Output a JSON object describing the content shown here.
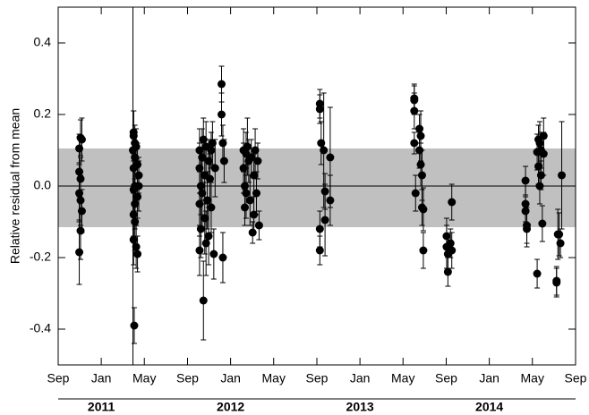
{
  "chart_data": {
    "type": "scatter",
    "y_label": "Relative residual from mean",
    "xlim": [
      2010.667,
      2014.667
    ],
    "ylim": [
      -0.5,
      0.5
    ],
    "xticks": [
      {
        "value": 2010.667,
        "label": "Sep"
      },
      {
        "value": 2011,
        "label": "Jan"
      },
      {
        "value": 2011.333,
        "label": "May"
      },
      {
        "value": 2011.667,
        "label": "Sep"
      },
      {
        "value": 2012,
        "label": "Jan"
      },
      {
        "value": 2012.333,
        "label": "May"
      },
      {
        "value": 2012.667,
        "label": "Sep"
      },
      {
        "value": 2013,
        "label": "Jan"
      },
      {
        "value": 2013.333,
        "label": "May"
      },
      {
        "value": 2013.667,
        "label": "Sep"
      },
      {
        "value": 2014,
        "label": "Jan"
      },
      {
        "value": 2014.333,
        "label": "May"
      },
      {
        "value": 2014.667,
        "label": "Sep"
      }
    ],
    "year_ticks": [
      2011,
      2012,
      2013,
      2014
    ],
    "yticks": [
      -0.4,
      -0.2,
      {
        "value": 0,
        "label": "0.0"
      },
      0.2,
      0.4
    ],
    "band": [
      -0.115,
      0.105
    ],
    "band_color": "#c0c0c0",
    "reference_line": 0,
    "color": "#000000",
    "x": [
      2010.83,
      2010.84,
      2010.85,
      2010.83,
      2010.84,
      2010.83,
      2010.84,
      2010.85,
      2010.84,
      2010.83,
      2011.245,
      2011.25,
      2011.25,
      2011.26,
      2011.26,
      2011.25,
      2011.26,
      2011.25,
      2011.26,
      2011.25,
      2011.26,
      2011.25,
      2011.255,
      2011.27,
      2011.28,
      2011.29,
      2011.28,
      2011.29,
      2011.27,
      2011.28,
      2011.76,
      2011.76,
      2011.77,
      2011.76,
      2011.77,
      2011.76,
      2011.78,
      2011.78,
      2011.79,
      2011.79,
      2011.8,
      2011.8,
      2011.81,
      2011.81,
      2011.82,
      2011.83,
      2011.83,
      2011.84,
      2011.85,
      2011.85,
      2011.86,
      2011.87,
      2011.88,
      2011.93,
      2011.93,
      2011.94,
      2011.94,
      2011.95,
      2012.1,
      2012.1,
      2012.11,
      2012.11,
      2012.12,
      2012.12,
      2012.13,
      2012.14,
      2012.15,
      2012.16,
      2012.17,
      2012.18,
      2012.18,
      2012.19,
      2012.2,
      2012.21,
      2012.22,
      2012.69,
      2012.69,
      2012.7,
      2012.69,
      2012.69,
      2012.72,
      2012.73,
      2012.73,
      2012.77,
      2012.77,
      2013.42,
      2013.42,
      2013.42,
      2013.42,
      2013.43,
      2013.46,
      2013.46,
      2013.47,
      2013.47,
      2013.48,
      2013.48,
      2013.49,
      2013.49,
      2013.67,
      2013.67,
      2013.68,
      2013.68,
      2013.7,
      2013.71,
      2013.71,
      2014.28,
      2014.28,
      2014.28,
      2014.29,
      2014.29,
      2014.37,
      2014.37,
      2014.38,
      2014.38,
      2014.39,
      2014.39,
      2014.4,
      2014.4,
      2014.41,
      2014.42,
      2014.42,
      2014.52,
      2014.52,
      2014.53,
      2014.54,
      2014.55,
      2014.56
    ],
    "values": [
      0.105,
      0.135,
      0.13,
      0.04,
      0.02,
      -0.02,
      -0.04,
      -0.07,
      -0.125,
      -0.185,
      0.1,
      0.15,
      0.14,
      0.12,
      0.08,
      0.05,
      0.0,
      -0.01,
      -0.05,
      -0.08,
      -0.1,
      -0.15,
      -0.39,
      0.11,
      0.06,
      0.03,
      -0.03,
      0.0,
      -0.17,
      -0.19,
      0.1,
      0.05,
      0.0,
      -0.05,
      -0.12,
      -0.18,
      0.08,
      -0.02,
      -0.32,
      0.13,
      0.03,
      -0.09,
      -0.16,
      0.11,
      -0.04,
      0.07,
      -0.14,
      0.02,
      0.1,
      -0.06,
      0.12,
      -0.19,
      0.05,
      0.285,
      0.2,
      0.12,
      -0.2,
      0.07,
      0.1,
      0.05,
      0.0,
      -0.06,
      0.09,
      -0.02,
      0.11,
      0.07,
      -0.04,
      0.08,
      -0.13,
      0.03,
      -0.08,
      0.1,
      -0.02,
      0.07,
      -0.11,
      0.23,
      0.215,
      0.12,
      -0.12,
      -0.18,
      0.1,
      -0.015,
      -0.095,
      0.08,
      -0.04,
      0.245,
      0.24,
      0.21,
      0.12,
      -0.02,
      0.16,
      0.1,
      0.06,
      0.14,
      -0.06,
      0.03,
      -0.18,
      -0.065,
      -0.14,
      -0.17,
      -0.24,
      -0.19,
      -0.16,
      -0.18,
      -0.045,
      0.015,
      -0.05,
      -0.07,
      -0.11,
      -0.12,
      0.095,
      -0.245,
      0.13,
      0.055,
      0.12,
      0.0,
      0.1,
      0.03,
      -0.105,
      0.14,
      0.09,
      -0.265,
      -0.27,
      -0.135,
      -0.135,
      -0.16,
      0.03
    ],
    "errors": [
      0.04,
      0.05,
      0.06,
      0.07,
      0.06,
      0.08,
      0.07,
      0.06,
      0.08,
      0.09,
      0.6,
      0.06,
      0.07,
      0.05,
      0.06,
      0.07,
      0.08,
      0.06,
      0.07,
      0.06,
      0.08,
      0.07,
      0.05,
      0.05,
      0.06,
      0.05,
      0.06,
      0.07,
      0.06,
      0.05,
      0.06,
      0.07,
      0.08,
      0.09,
      0.08,
      0.07,
      0.08,
      0.1,
      0.11,
      0.06,
      0.08,
      0.1,
      0.09,
      0.07,
      0.08,
      0.06,
      0.08,
      0.07,
      0.05,
      0.07,
      0.06,
      0.07,
      0.08,
      0.05,
      0.06,
      0.05,
      0.07,
      0.06,
      0.06,
      0.07,
      0.06,
      0.05,
      0.06,
      0.07,
      0.08,
      0.06,
      0.07,
      0.05,
      0.03,
      0.06,
      0.05,
      0.06,
      0.06,
      0.05,
      0.04,
      0.04,
      0.04,
      0.06,
      0.05,
      0.04,
      0.16,
      0.05,
      0.1,
      0.14,
      0.07,
      0.04,
      0.04,
      0.05,
      0.03,
      0.05,
      0.04,
      0.05,
      0.06,
      0.07,
      0.05,
      0.07,
      0.05,
      0.06,
      0.05,
      0.06,
      0.04,
      0.05,
      0.04,
      0.05,
      0.05,
      0.04,
      0.05,
      0.04,
      0.05,
      0.05,
      0.05,
      0.04,
      0.04,
      0.05,
      0.06,
      0.05,
      0.05,
      0.04,
      0.05,
      0.05,
      0.06,
      0.04,
      0.04,
      0.07,
      0.06,
      0.04,
      0.15
    ]
  }
}
